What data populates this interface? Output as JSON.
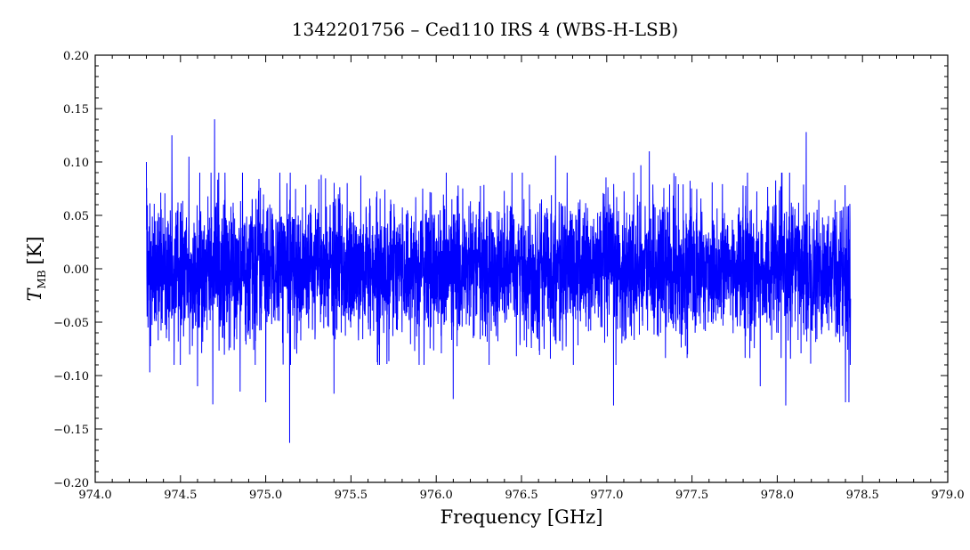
{
  "chart_data": {
    "type": "line",
    "title": "1342201756 – Ced110 IRS 4 (WBS-H-LSB)",
    "xlabel": "Frequency [GHz]",
    "ylabel_main": "T",
    "ylabel_sub": "MB",
    "ylabel_unit": "[K]",
    "xlim": [
      974.0,
      979.0
    ],
    "ylim": [
      -0.2,
      0.2
    ],
    "x_ticks": [
      974.0,
      974.5,
      975.0,
      975.5,
      976.0,
      976.5,
      977.0,
      977.5,
      978.0,
      978.5,
      979.0
    ],
    "x_tick_labels": [
      "974.0",
      "974.5",
      "975.0",
      "975.5",
      "976.0",
      "976.5",
      "977.0",
      "977.5",
      "978.0",
      "978.5",
      "979.0"
    ],
    "y_ticks": [
      -0.2,
      -0.15,
      -0.1,
      -0.05,
      0.0,
      0.05,
      0.1,
      0.15,
      0.2
    ],
    "y_tick_labels": [
      "−0.20",
      "−0.15",
      "−0.10",
      "−0.05",
      "0.00",
      "0.05",
      "0.10",
      "0.15",
      "0.20"
    ],
    "grid": false,
    "series": [
      {
        "color": "#0000ff",
        "x_start": 974.3,
        "x_end": 978.43,
        "noise_rms": 0.035,
        "peaks": [
          {
            "x": 974.3,
            "y": 0.1
          },
          {
            "x": 974.31,
            "y": -0.055
          },
          {
            "x": 974.32,
            "y": -0.097
          },
          {
            "x": 974.45,
            "y": 0.125
          },
          {
            "x": 974.55,
            "y": 0.105
          },
          {
            "x": 974.6,
            "y": -0.11
          },
          {
            "x": 974.7,
            "y": 0.14
          },
          {
            "x": 974.69,
            "y": -0.127
          },
          {
            "x": 974.85,
            "y": -0.115
          },
          {
            "x": 975.0,
            "y": -0.125
          },
          {
            "x": 975.14,
            "y": -0.163
          },
          {
            "x": 975.4,
            "y": -0.117
          },
          {
            "x": 975.9,
            "y": -0.09
          },
          {
            "x": 976.1,
            "y": -0.122
          },
          {
            "x": 976.7,
            "y": 0.106
          },
          {
            "x": 977.04,
            "y": -0.128
          },
          {
            "x": 977.2,
            "y": 0.097
          },
          {
            "x": 977.25,
            "y": 0.11
          },
          {
            "x": 977.9,
            "y": -0.11
          },
          {
            "x": 978.05,
            "y": -0.128
          },
          {
            "x": 978.17,
            "y": 0.128
          },
          {
            "x": 978.4,
            "y": -0.125
          },
          {
            "x": 978.42,
            "y": -0.125
          }
        ]
      }
    ]
  }
}
